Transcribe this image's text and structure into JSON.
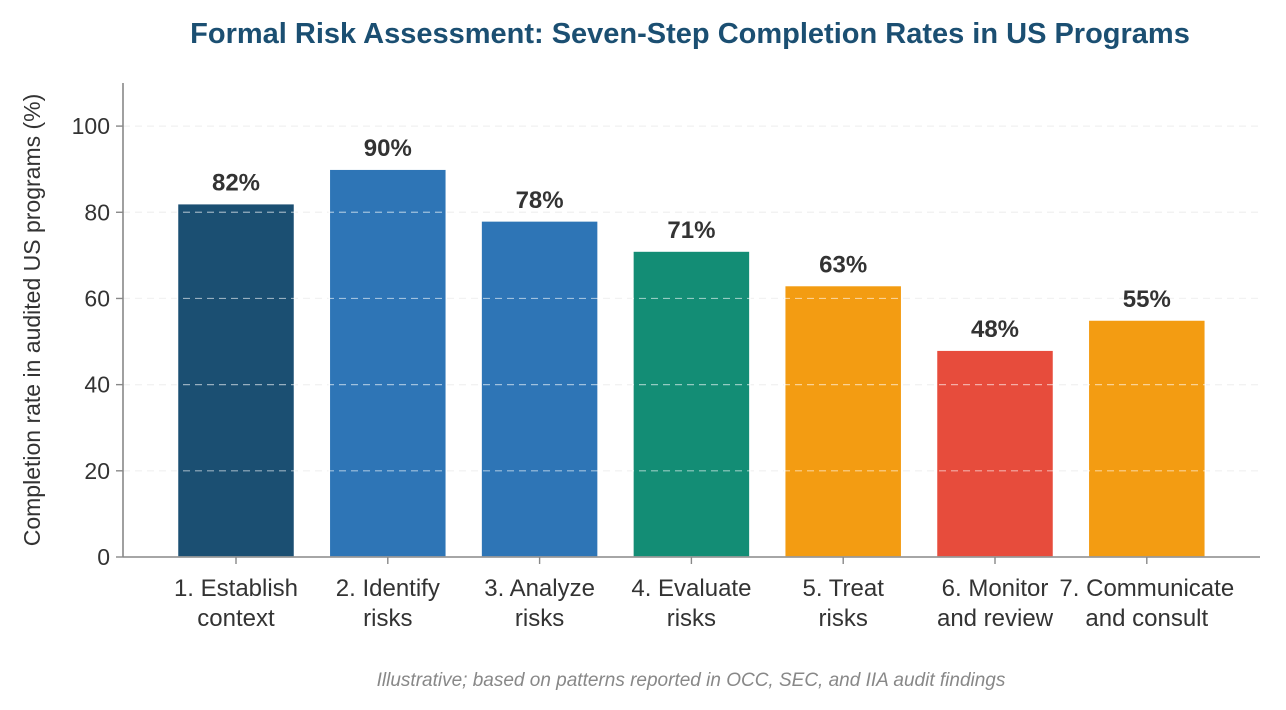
{
  "chart_data": {
    "type": "bar",
    "title": "Formal Risk Assessment: Seven-Step Completion Rates in US Programs",
    "ylabel": "Completion rate in audited US programs (%)",
    "xlabel": "",
    "categories": [
      [
        "1. Establish",
        "context"
      ],
      [
        "2. Identify",
        "risks"
      ],
      [
        "3. Analyze",
        "risks"
      ],
      [
        "4. Evaluate",
        "risks"
      ],
      [
        "5. Treat",
        "risks"
      ],
      [
        "6. Monitor",
        "and review"
      ],
      [
        "7. Communicate",
        "and consult"
      ]
    ],
    "values": [
      82,
      90,
      78,
      71,
      63,
      48,
      55
    ],
    "value_labels": [
      "82%",
      "90%",
      "78%",
      "71%",
      "63%",
      "48%",
      "55%"
    ],
    "colors": [
      "#1b4f72",
      "#2e75b6",
      "#2e75b6",
      "#138d75",
      "#f39c12",
      "#e74c3c",
      "#f39c12"
    ],
    "ylim": [
      0,
      110
    ],
    "yticks": [
      0,
      20,
      40,
      60,
      80,
      100
    ],
    "ytick_labels": [
      "0",
      "20",
      "40",
      "60",
      "80",
      "100"
    ],
    "grid": true,
    "legend": "none",
    "footnote": "Illustrative; based on patterns reported in OCC, SEC, and IIA audit findings"
  }
}
